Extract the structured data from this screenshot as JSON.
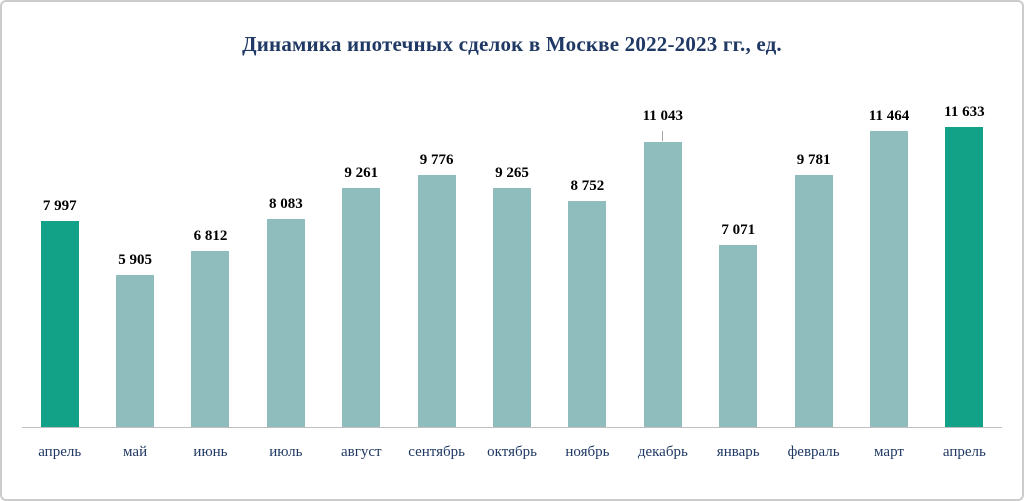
{
  "chart_data": {
    "type": "bar",
    "title": "Динамика ипотечных сделок в Москве 2022-2023 гг., ед.",
    "categories": [
      "апрель",
      "май",
      "июнь",
      "июль",
      "август",
      "сентябрь",
      "октябрь",
      "ноябрь",
      "декабрь",
      "январь",
      "февраль",
      "март",
      "апрель"
    ],
    "values": [
      7997,
      5905,
      6812,
      8083,
      9261,
      9776,
      9265,
      8752,
      11043,
      7071,
      9781,
      11464,
      11633
    ],
    "labels": [
      "7 997",
      "5 905",
      "6 812",
      "8 083",
      "9 261",
      "9 776",
      "9 265",
      "8 752",
      "11 043",
      "7 071",
      "9 781",
      "11 464",
      "11 633"
    ],
    "highlight_indices": [
      0,
      12
    ],
    "leader_line_index": 8,
    "colors": {
      "highlight": "#12a287",
      "default": "#8fbcbc",
      "title": "#1f3864",
      "axis_line": "#bfbfbf",
      "value_label": "#000000"
    },
    "xlabel": "",
    "ylabel": "",
    "ylim": [
      0,
      11633
    ],
    "grid": false,
    "legend": false
  }
}
